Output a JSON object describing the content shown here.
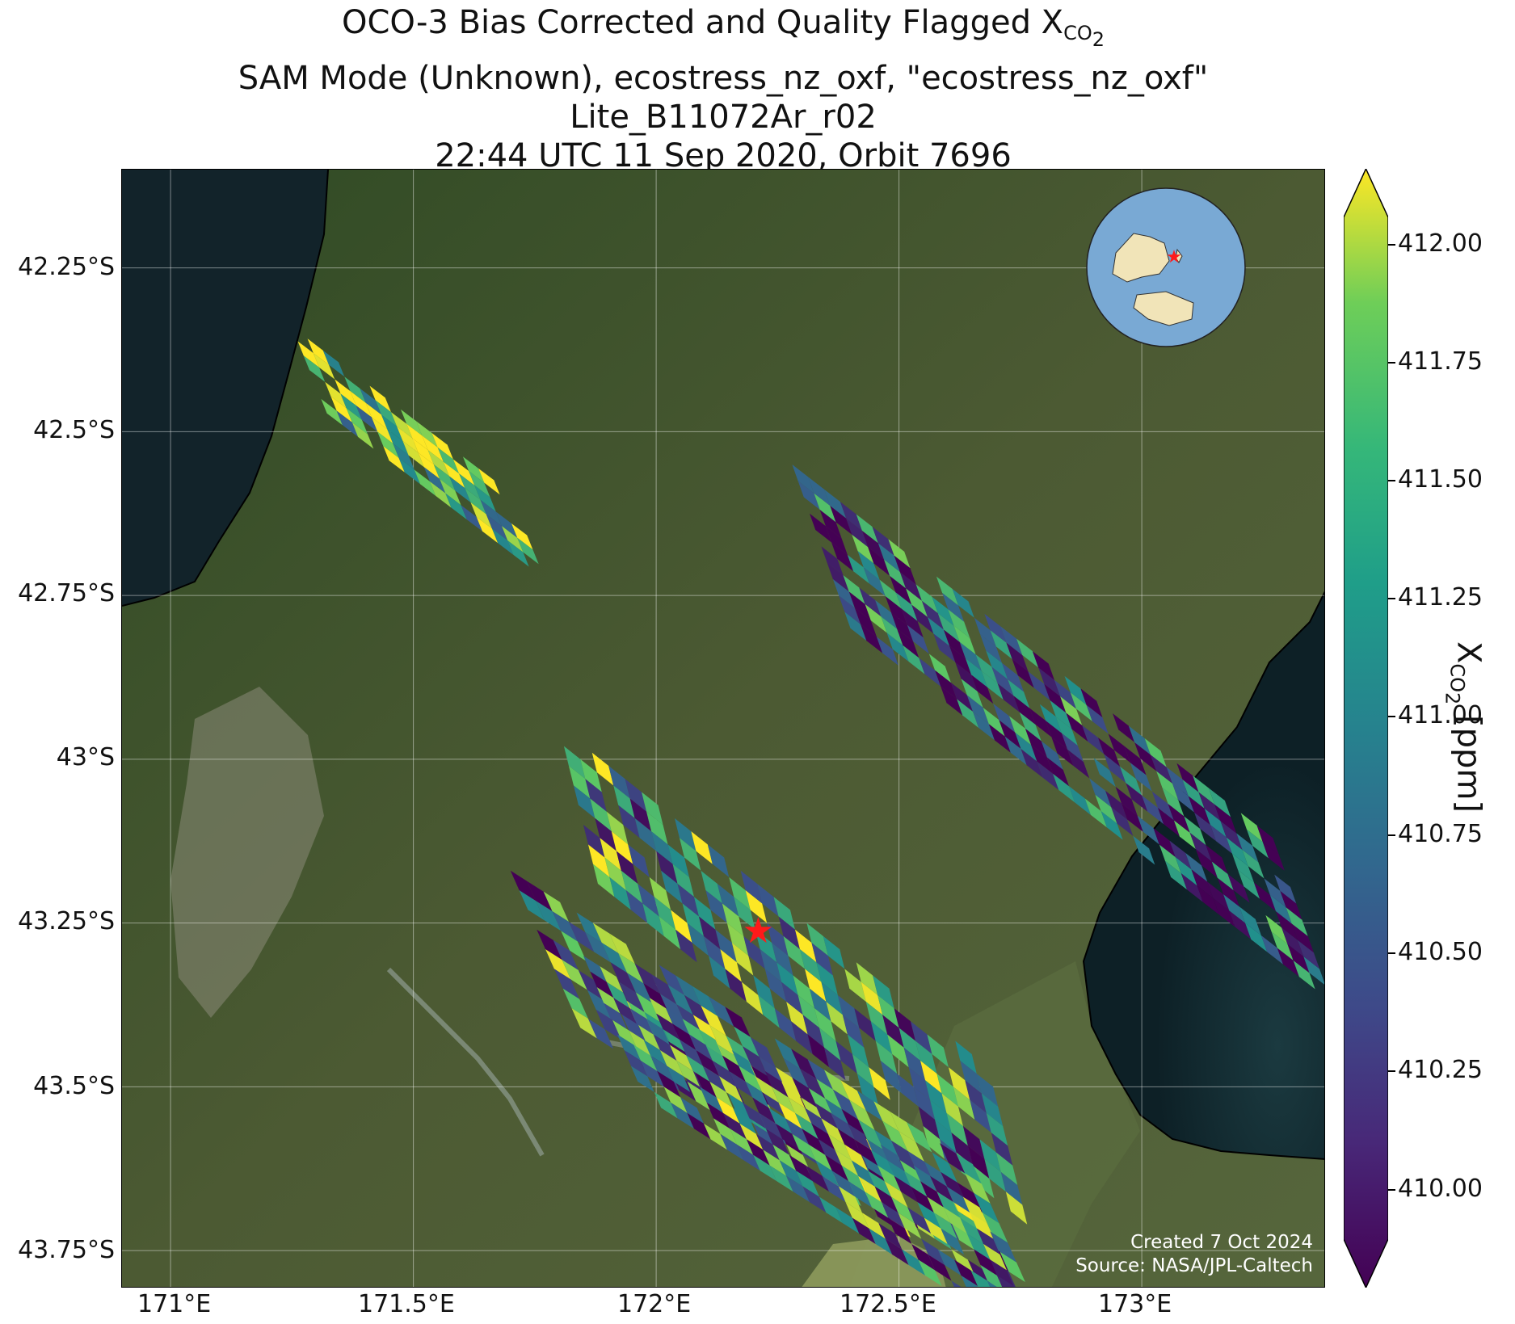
{
  "title": {
    "line1_prefix": "OCO-3 Bias Corrected and Quality Flagged X",
    "line1_sub": "CO",
    "line1_sub2": "2",
    "line2": "SAM Mode (Unknown), ecostress_nz_oxf, \"ecostress_nz_oxf\"",
    "line3": "Lite_B11072Ar_r02",
    "line4": "22:44 UTC 11 Sep 2020, Orbit 7696"
  },
  "map": {
    "lat_labels": [
      "42.25°S",
      "42.5°S",
      "42.75°S",
      "43°S",
      "43.25°S",
      "43.5°S",
      "43.75°S"
    ],
    "lon_labels": [
      "171°E",
      "171.5°E",
      "172°E",
      "172.5°E",
      "173°E"
    ],
    "target_marker": {
      "lon": 172.21,
      "lat": -43.26,
      "color": "#ff1a1a"
    },
    "inset_globe": {
      "ocean_color": "#79a9d4",
      "land_color": "#f1e4b8"
    }
  },
  "colorbar": {
    "ticks": [
      "412.00",
      "411.75",
      "411.50",
      "411.25",
      "411.00",
      "410.75",
      "410.50",
      "410.25",
      "410.00"
    ],
    "label_prefix": "X",
    "label_sub": "CO",
    "label_sub2": "2",
    "label_suffix": " [ppm]",
    "colormap": "viridis",
    "range": [
      409.85,
      412.1
    ]
  },
  "credits": {
    "created": "Created 7 Oct 2024",
    "source": "Source: NASA/JPL-Caltech"
  },
  "colors": {
    "viridis": [
      "#440154",
      "#3b528b",
      "#21918c",
      "#5ec962",
      "#fde725"
    ]
  }
}
